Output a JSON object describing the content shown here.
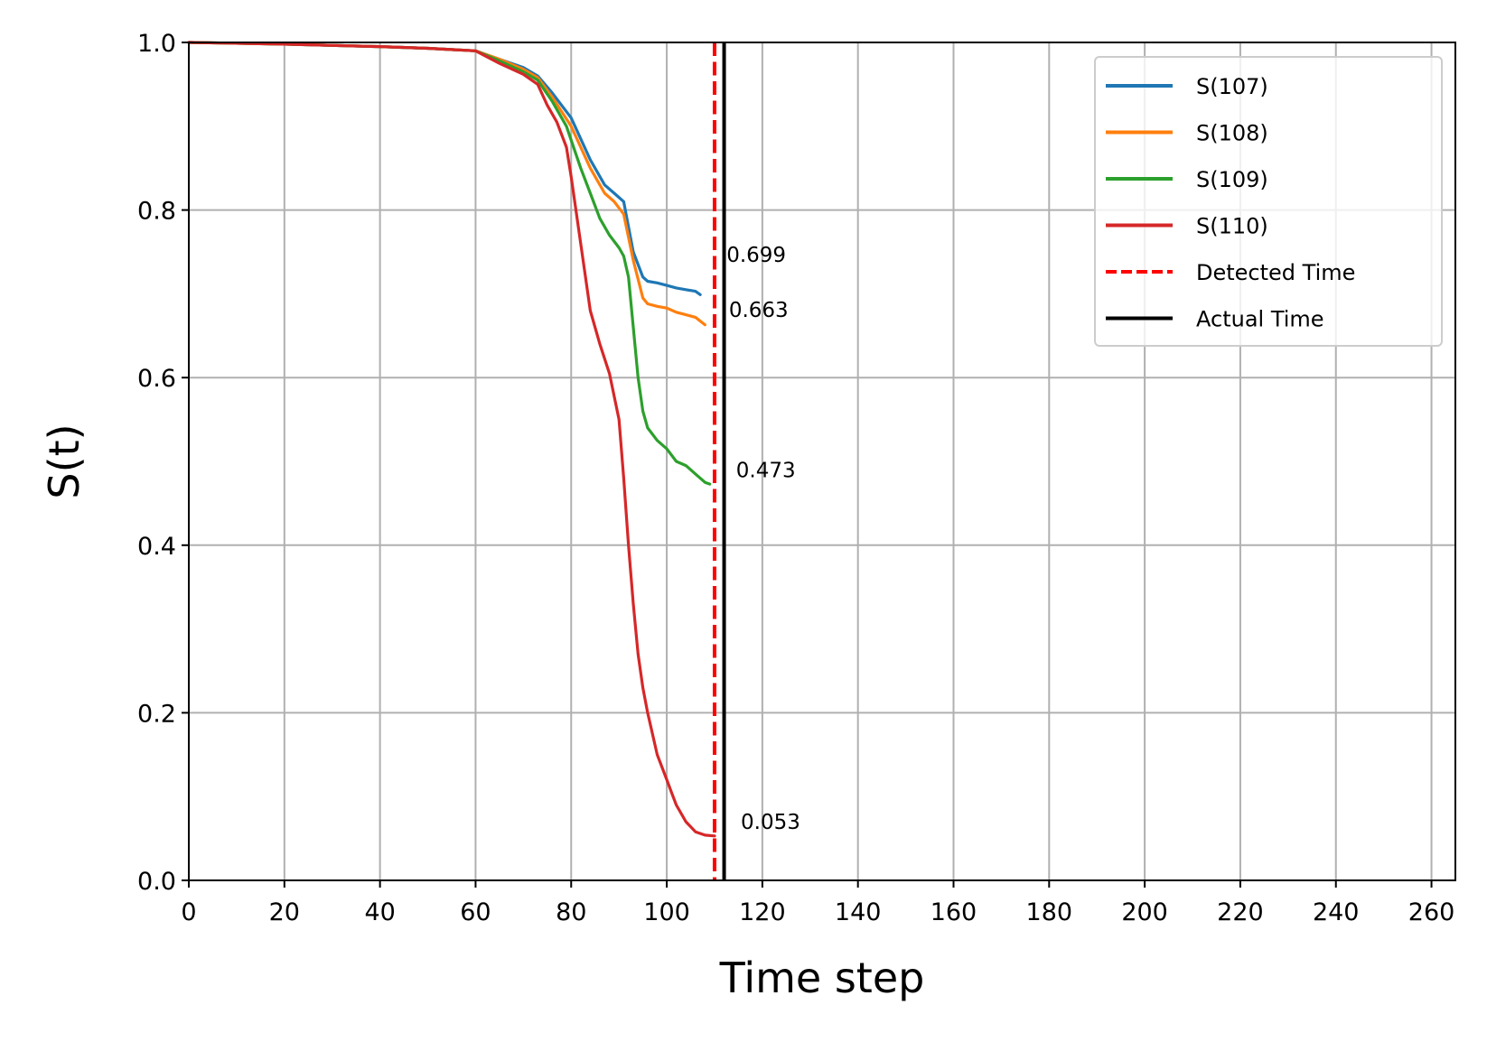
{
  "chart_data": {
    "type": "line",
    "title": "",
    "xlabel": "Time step",
    "ylabel": "S(t)",
    "xlim": [
      0,
      265
    ],
    "ylim": [
      0,
      1.0
    ],
    "xticks": [
      0,
      20,
      40,
      60,
      80,
      100,
      120,
      140,
      160,
      180,
      200,
      220,
      240,
      260
    ],
    "yticks": [
      0.0,
      0.2,
      0.4,
      0.6,
      0.8,
      1.0
    ],
    "ytick_labels": [
      "0.0",
      "0.2",
      "0.4",
      "0.6",
      "0.8",
      "1.0"
    ],
    "grid": true,
    "legend_position": "top-right",
    "series": [
      {
        "name": "S(107)",
        "color": "#1f77b4",
        "x": [
          0,
          20,
          40,
          50,
          60,
          65,
          70,
          73,
          76,
          80,
          84,
          87,
          89,
          91,
          93,
          95,
          96,
          98,
          100,
          102,
          104,
          106,
          107
        ],
        "y": [
          1.0,
          0.998,
          0.995,
          0.993,
          0.99,
          0.98,
          0.97,
          0.96,
          0.94,
          0.91,
          0.86,
          0.83,
          0.82,
          0.81,
          0.75,
          0.72,
          0.715,
          0.713,
          0.71,
          0.707,
          0.705,
          0.703,
          0.699
        ]
      },
      {
        "name": "S(108)",
        "color": "#ff7f0e",
        "x": [
          0,
          20,
          40,
          50,
          60,
          65,
          70,
          73,
          76,
          80,
          84,
          87,
          89,
          91,
          93,
          95,
          96,
          98,
          100,
          102,
          104,
          106,
          108
        ],
        "y": [
          1.0,
          0.998,
          0.995,
          0.993,
          0.99,
          0.98,
          0.968,
          0.958,
          0.935,
          0.9,
          0.85,
          0.82,
          0.81,
          0.795,
          0.74,
          0.695,
          0.688,
          0.685,
          0.683,
          0.678,
          0.675,
          0.672,
          0.663
        ]
      },
      {
        "name": "S(109)",
        "color": "#2ca02c",
        "x": [
          0,
          20,
          40,
          50,
          60,
          65,
          70,
          73,
          76,
          79,
          82,
          84,
          86,
          88,
          90,
          91,
          92,
          93,
          94,
          95,
          96,
          98,
          100,
          102,
          104,
          106,
          108,
          109
        ],
        "y": [
          1.0,
          0.998,
          0.995,
          0.993,
          0.99,
          0.978,
          0.965,
          0.955,
          0.93,
          0.9,
          0.85,
          0.82,
          0.79,
          0.77,
          0.755,
          0.745,
          0.72,
          0.66,
          0.6,
          0.56,
          0.54,
          0.525,
          0.515,
          0.5,
          0.495,
          0.485,
          0.475,
          0.473
        ]
      },
      {
        "name": "S(110)",
        "color": "#d62728",
        "x": [
          0,
          20,
          40,
          50,
          60,
          65,
          70,
          73,
          75,
          77,
          79,
          80,
          82,
          84,
          86,
          88,
          90,
          91,
          92,
          93,
          94,
          95,
          96,
          98,
          100,
          101,
          102,
          104,
          106,
          108,
          110
        ],
        "y": [
          1.0,
          0.998,
          0.995,
          0.993,
          0.99,
          0.975,
          0.962,
          0.95,
          0.925,
          0.905,
          0.875,
          0.84,
          0.76,
          0.68,
          0.64,
          0.605,
          0.55,
          0.48,
          0.4,
          0.33,
          0.27,
          0.23,
          0.2,
          0.15,
          0.12,
          0.105,
          0.09,
          0.07,
          0.058,
          0.054,
          0.053
        ]
      }
    ],
    "vlines": [
      {
        "name": "Detected Time",
        "x": 110,
        "color": "#ff0000",
        "style": "dashed"
      },
      {
        "name": "Actual Time",
        "x": 112,
        "color": "#000000",
        "style": "solid"
      }
    ],
    "annotations": [
      {
        "text": "0.699",
        "x": 112.5,
        "y": 0.747
      },
      {
        "text": "0.663",
        "x": 113,
        "y": 0.681
      },
      {
        "text": "0.473",
        "x": 114.5,
        "y": 0.49
      },
      {
        "text": "0.053",
        "x": 115.5,
        "y": 0.07
      }
    ],
    "legend": [
      "S(107)",
      "S(108)",
      "S(109)",
      "S(110)",
      "Detected Time",
      "Actual Time"
    ]
  }
}
